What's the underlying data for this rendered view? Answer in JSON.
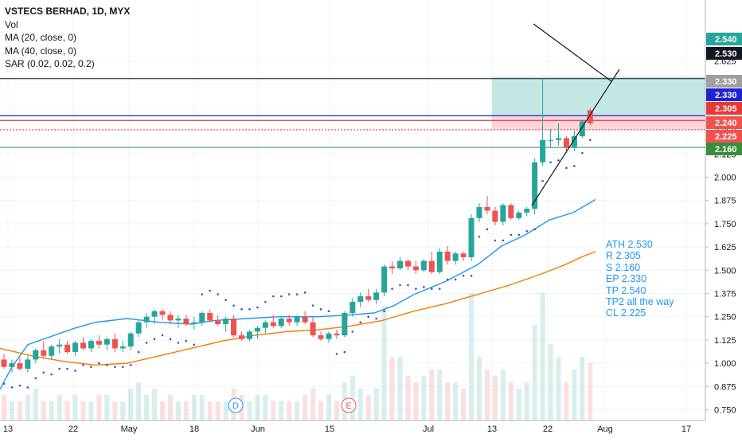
{
  "legend": {
    "title": "VSTECS BERHAD, 1D, MYX",
    "vol": "Vol",
    "ma20": "MA (20, close, 0)",
    "ma40": "MA (40, close, 0)",
    "sar": "SAR (0.02, 0.02, 0.2)"
  },
  "annotation": [
    "ATH 2.530",
    "R 2.305",
    "S 2.160",
    "EP 2.330",
    "TP 2.540",
    "TP2 all the way",
    "CL 2.225"
  ],
  "colors": {
    "up": "#26a69a",
    "down": "#ef5350",
    "ma20": "#2196F3",
    "ma40": "#F57C00",
    "sar": "#3F51B5",
    "ath_line": "#131722",
    "resistance": "#E53935",
    "entry": "#1E22CF",
    "support": "#388E3C",
    "target_zone": "#B2DFDB",
    "stop_zone": "#FFCDD2"
  },
  "chart_data": {
    "type": "candlestick",
    "ylim": [
      0.7,
      2.7
    ],
    "y_ticks": [
      "2.625",
      "2.500",
      "2.375",
      "2.250",
      "2.125",
      "2.000",
      "1.875",
      "1.750",
      "1.625",
      "1.500",
      "1.375",
      "1.250",
      "1.125",
      "1.000",
      "0.875",
      "0.750"
    ],
    "x_ticks": [
      "13",
      "22",
      "May",
      "18",
      "Jun",
      "15",
      "Jul",
      "13",
      "22",
      "Aug",
      "17"
    ],
    "price_badges": [
      {
        "label": "2.540",
        "bg": "#26a69a",
        "fg": "#ffffff"
      },
      {
        "label": "2.530",
        "bg": "#131722",
        "fg": "#ffffff"
      },
      {
        "label": "2.330",
        "bg": "#9e9e9e",
        "fg": "#ffffff"
      },
      {
        "label": "2.330",
        "bg": "#1E22CF",
        "fg": "#ffffff"
      },
      {
        "label": "2.305",
        "bg": "#E53935",
        "fg": "#ffffff"
      },
      {
        "label": "2.240",
        "bg": "#ef5350",
        "fg": "#ffffff"
      },
      {
        "label": "2.225",
        "bg": "#ef5350",
        "fg": "#ffffff"
      },
      {
        "label": "2.160",
        "bg": "#388E3C",
        "fg": "#ffffff"
      }
    ],
    "levels": {
      "ath": 2.53,
      "target": 2.54,
      "entry": 2.33,
      "resistance": 2.305,
      "stop_loss": 2.225,
      "support": 2.16
    },
    "event_markers": [
      "D",
      "E"
    ],
    "candles": [
      [
        1.02,
        1.05,
        0.97,
        0.98
      ],
      [
        0.98,
        1.02,
        0.95,
        1.0
      ],
      [
        1.0,
        1.03,
        0.96,
        0.97
      ],
      [
        0.97,
        1.04,
        0.95,
        1.02
      ],
      [
        1.02,
        1.08,
        1.0,
        1.07
      ],
      [
        1.07,
        1.12,
        1.03,
        1.04
      ],
      [
        1.04,
        1.1,
        1.02,
        1.09
      ],
      [
        1.09,
        1.13,
        1.05,
        1.1
      ],
      [
        1.1,
        1.12,
        1.05,
        1.06
      ],
      [
        1.06,
        1.12,
        1.04,
        1.11
      ],
      [
        1.11,
        1.14,
        1.07,
        1.08
      ],
      [
        1.08,
        1.13,
        1.06,
        1.12
      ],
      [
        1.12,
        1.15,
        1.08,
        1.1
      ],
      [
        1.1,
        1.14,
        1.07,
        1.13
      ],
      [
        1.13,
        1.16,
        1.06,
        1.08
      ],
      [
        1.08,
        1.12,
        1.06,
        1.09
      ],
      [
        1.09,
        1.17,
        1.07,
        1.16
      ],
      [
        1.16,
        1.23,
        1.14,
        1.22
      ],
      [
        1.22,
        1.27,
        1.19,
        1.25
      ],
      [
        1.25,
        1.29,
        1.21,
        1.28
      ],
      [
        1.28,
        1.29,
        1.23,
        1.26
      ],
      [
        1.26,
        1.28,
        1.21,
        1.23
      ],
      [
        1.23,
        1.26,
        1.19,
        1.24
      ],
      [
        1.24,
        1.26,
        1.2,
        1.21
      ],
      [
        1.21,
        1.25,
        1.18,
        1.22
      ],
      [
        1.22,
        1.28,
        1.2,
        1.27
      ],
      [
        1.27,
        1.29,
        1.22,
        1.23
      ],
      [
        1.23,
        1.26,
        1.2,
        1.21
      ],
      [
        1.21,
        1.25,
        1.17,
        1.24
      ],
      [
        1.24,
        1.26,
        1.14,
        1.15
      ],
      [
        1.15,
        1.17,
        1.12,
        1.13
      ],
      [
        1.13,
        1.18,
        1.12,
        1.17
      ],
      [
        1.17,
        1.2,
        1.13,
        1.19
      ],
      [
        1.19,
        1.23,
        1.16,
        1.22
      ],
      [
        1.22,
        1.26,
        1.19,
        1.2
      ],
      [
        1.2,
        1.25,
        1.19,
        1.24
      ],
      [
        1.24,
        1.26,
        1.2,
        1.22
      ],
      [
        1.22,
        1.26,
        1.2,
        1.25
      ],
      [
        1.25,
        1.28,
        1.21,
        1.22
      ],
      [
        1.22,
        1.25,
        1.14,
        1.15
      ],
      [
        1.15,
        1.17,
        1.12,
        1.13
      ],
      [
        1.13,
        1.17,
        1.11,
        1.16
      ],
      [
        1.16,
        1.18,
        1.13,
        1.15
      ],
      [
        1.15,
        1.28,
        1.14,
        1.27
      ],
      [
        1.27,
        1.35,
        1.25,
        1.33
      ],
      [
        1.33,
        1.38,
        1.3,
        1.36
      ],
      [
        1.36,
        1.4,
        1.33,
        1.34
      ],
      [
        1.34,
        1.4,
        1.32,
        1.38
      ],
      [
        1.38,
        1.53,
        1.36,
        1.52
      ],
      [
        1.52,
        1.55,
        1.48,
        1.51
      ],
      [
        1.51,
        1.57,
        1.5,
        1.55
      ],
      [
        1.55,
        1.56,
        1.5,
        1.52
      ],
      [
        1.52,
        1.55,
        1.48,
        1.5
      ],
      [
        1.5,
        1.56,
        1.49,
        1.55
      ],
      [
        1.55,
        1.6,
        1.48,
        1.49
      ],
      [
        1.49,
        1.62,
        1.48,
        1.6
      ],
      [
        1.6,
        1.63,
        1.53,
        1.55
      ],
      [
        1.55,
        1.6,
        1.53,
        1.59
      ],
      [
        1.59,
        1.6,
        1.55,
        1.57
      ],
      [
        1.57,
        1.8,
        1.55,
        1.78
      ],
      [
        1.78,
        1.86,
        1.76,
        1.84
      ],
      [
        1.84,
        1.9,
        1.8,
        1.82
      ],
      [
        1.82,
        1.84,
        1.74,
        1.76
      ],
      [
        1.76,
        1.86,
        1.74,
        1.85
      ],
      [
        1.85,
        1.86,
        1.77,
        1.78
      ],
      [
        1.78,
        1.82,
        1.77,
        1.81
      ],
      [
        1.81,
        1.84,
        1.79,
        1.83
      ],
      [
        1.83,
        2.1,
        1.8,
        2.08
      ],
      [
        2.08,
        2.53,
        2.06,
        2.2
      ],
      [
        2.2,
        2.26,
        2.16,
        2.2
      ],
      [
        2.2,
        2.29,
        2.17,
        2.21
      ],
      [
        2.21,
        2.22,
        2.13,
        2.16
      ],
      [
        2.16,
        2.25,
        2.14,
        2.22
      ],
      [
        2.22,
        2.31,
        2.21,
        2.3
      ],
      [
        2.36,
        2.37,
        2.28,
        2.29
      ]
    ],
    "volume": [
      0.04,
      0.03,
      0.03,
      0.04,
      0.05,
      0.03,
      0.03,
      0.04,
      0.03,
      0.04,
      0.03,
      0.03,
      0.04,
      0.04,
      0.03,
      0.03,
      0.05,
      0.06,
      0.04,
      0.05,
      0.03,
      0.04,
      0.03,
      0.03,
      0.04,
      0.04,
      0.03,
      0.03,
      0.03,
      0.05,
      0.04,
      0.03,
      0.04,
      0.04,
      0.03,
      0.03,
      0.03,
      0.03,
      0.04,
      0.05,
      0.03,
      0.04,
      0.03,
      0.06,
      0.07,
      0.05,
      0.04,
      0.05,
      0.18,
      0.1,
      0.1,
      0.07,
      0.06,
      0.07,
      0.08,
      0.08,
      0.06,
      0.06,
      0.05,
      0.2,
      0.1,
      0.08,
      0.07,
      0.08,
      0.06,
      0.05,
      0.06,
      0.15,
      0.2,
      0.12,
      0.1,
      0.06,
      0.08,
      0.1,
      0.09
    ],
    "ma20": [
      [
        0,
        0.86
      ],
      [
        15,
        0.98
      ],
      [
        35,
        1.1
      ],
      [
        55,
        1.13
      ],
      [
        75,
        1.16
      ],
      [
        95,
        1.19
      ],
      [
        120,
        1.22
      ],
      [
        160,
        1.24
      ],
      [
        200,
        1.22
      ],
      [
        240,
        1.21
      ],
      [
        270,
        1.23
      ],
      [
        310,
        1.24
      ],
      [
        350,
        1.25
      ],
      [
        400,
        1.25
      ],
      [
        440,
        1.26
      ],
      [
        470,
        1.27
      ],
      [
        495,
        1.31
      ],
      [
        520,
        1.37
      ],
      [
        560,
        1.44
      ],
      [
        600,
        1.53
      ],
      [
        630,
        1.63
      ],
      [
        660,
        1.69
      ],
      [
        690,
        1.77
      ],
      [
        720,
        1.81
      ],
      [
        748,
        1.88
      ]
    ],
    "ma40": [
      [
        0,
        1.08
      ],
      [
        40,
        1.04
      ],
      [
        80,
        1.01
      ],
      [
        120,
        0.99
      ],
      [
        160,
        1.0
      ],
      [
        200,
        1.04
      ],
      [
        240,
        1.08
      ],
      [
        280,
        1.12
      ],
      [
        320,
        1.15
      ],
      [
        360,
        1.17
      ],
      [
        400,
        1.18
      ],
      [
        440,
        1.2
      ],
      [
        480,
        1.23
      ],
      [
        520,
        1.28
      ],
      [
        560,
        1.32
      ],
      [
        600,
        1.37
      ],
      [
        640,
        1.42
      ],
      [
        680,
        1.48
      ],
      [
        710,
        1.53
      ],
      [
        730,
        1.57
      ],
      [
        748,
        1.6
      ]
    ]
  }
}
